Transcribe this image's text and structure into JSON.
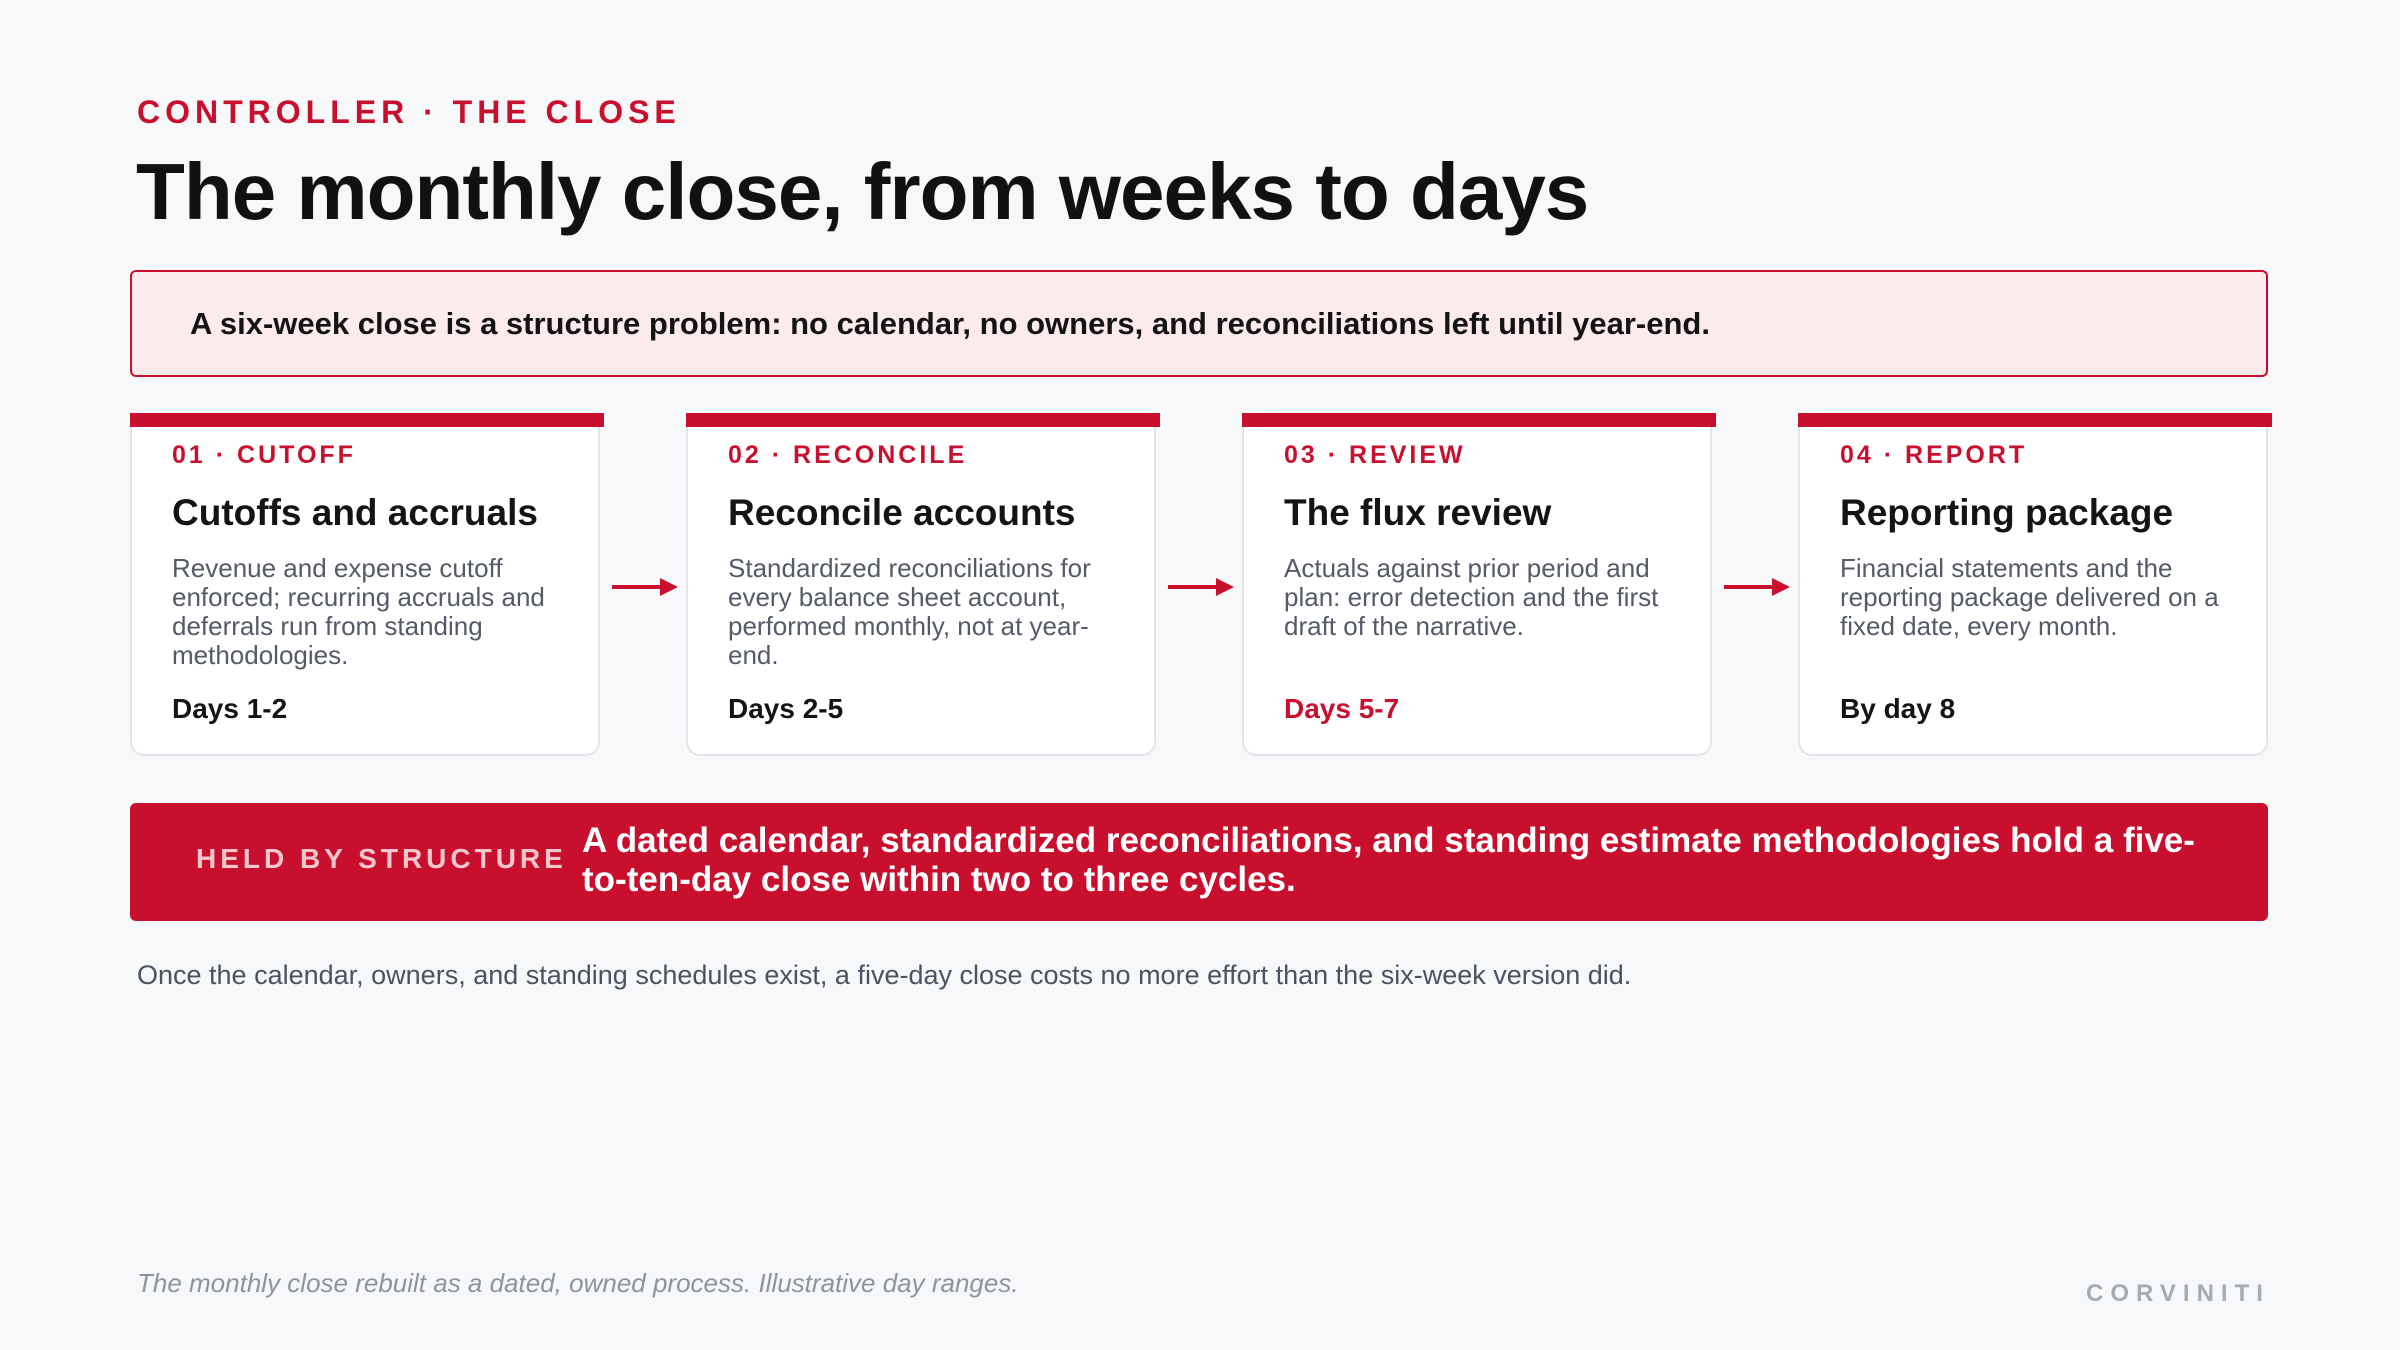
{
  "header": {
    "eyebrow": "CONTROLLER · THE CLOSE",
    "title": "The monthly close, from weeks to days"
  },
  "callout": {
    "text": "A six-week close is a structure problem: no calendar, no owners, and reconciliations left until year-end."
  },
  "steps": [
    {
      "tag": "01 · CUTOFF",
      "title": "Cutoffs and accruals",
      "body": "Revenue and expense cutoff enforced; recurring accruals and deferrals run from standing methodologies.",
      "days": "Days 1-2"
    },
    {
      "tag": "02 · RECONCILE",
      "title": "Reconcile accounts",
      "body": "Standardized reconciliations for every balance sheet account, performed monthly, not at year-end.",
      "days": "Days 2-5"
    },
    {
      "tag": "03 · REVIEW",
      "title": "The flux review",
      "body": "Actuals against prior period and plan: error detection and the first draft of the narrative.",
      "days": "Days 5-7"
    },
    {
      "tag": "04 · REPORT",
      "title": "Reporting package",
      "body": "Financial statements and the reporting package delivered on a fixed date, every month.",
      "days": "By day 8"
    }
  ],
  "banner": {
    "label": "HELD BY STRUCTURE",
    "text": "A dated calendar, standardized reconciliations, and standing estimate methodologies hold a five-to-ten-day close within two to three cycles."
  },
  "note": "Once the calendar, owners, and standing schedules exist, a five-day close costs no more effort than the six-week version did.",
  "footer": {
    "caption": "The monthly close rebuilt as a dated, owned process. Illustrative day ranges.",
    "brand": "CORVINITI"
  },
  "colors": {
    "accent": "#c8102e",
    "callout_bg": "#fcebed",
    "background": "#f7f8fa"
  },
  "icons": {
    "step_connector": "arrow-right-icon"
  }
}
